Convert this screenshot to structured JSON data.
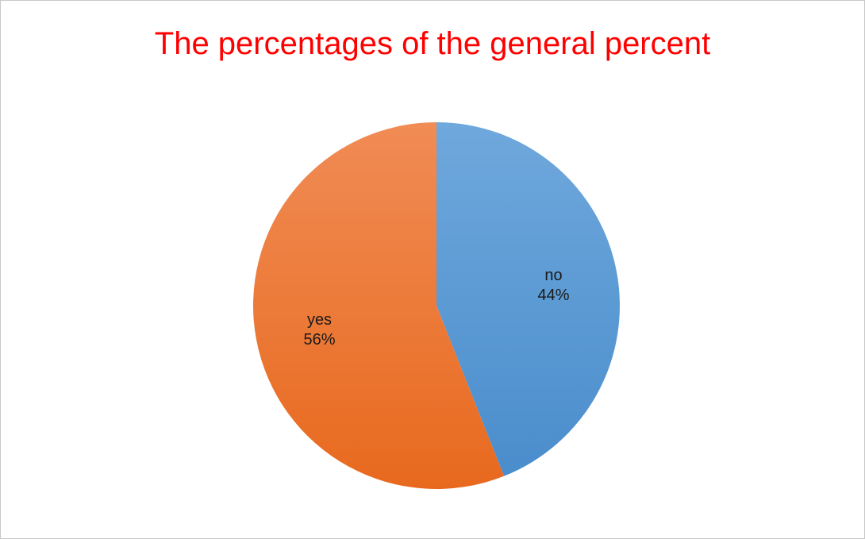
{
  "chart_data": {
    "type": "pie",
    "title": "The percentages of the general percent",
    "title_color": "#ff0000",
    "slices": [
      {
        "label": "no",
        "value": 44,
        "display": "44%",
        "color_light": "#6fa8dc",
        "color_dark": "#4a8dcc"
      },
      {
        "label": "yes",
        "value": 56,
        "display": "56%",
        "color_light": "#f08c55",
        "color_dark": "#e8691e"
      }
    ],
    "start_direction": "top",
    "order": "clockwise",
    "legend": "none"
  }
}
